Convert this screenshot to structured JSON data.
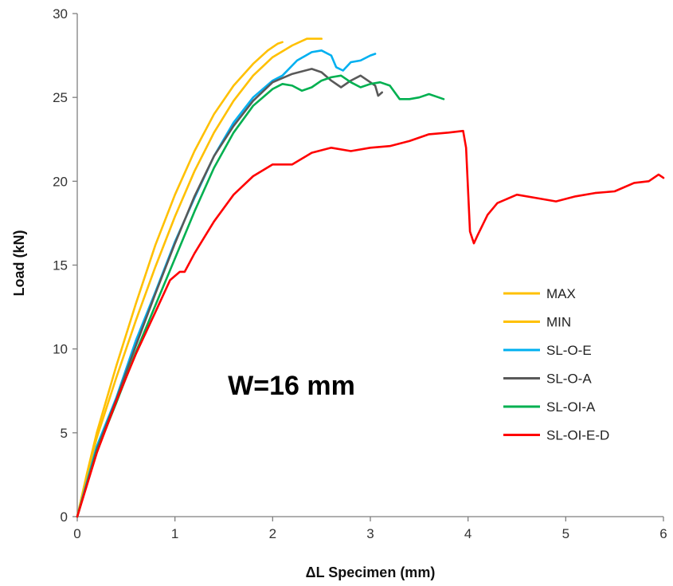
{
  "chart_data": {
    "type": "line",
    "title": "",
    "xlabel": "ΔL Specimen (mm)",
    "ylabel": "Load (kN)",
    "xlim": [
      0,
      6
    ],
    "ylim": [
      0,
      30
    ],
    "xticks": [
      "0",
      "1",
      "2",
      "3",
      "4",
      "5",
      "6"
    ],
    "yticks": [
      "0",
      "5",
      "10",
      "15",
      "20",
      "25",
      "30"
    ],
    "grid": false,
    "legend_position": "right",
    "annotation": "W=16 mm",
    "series": [
      {
        "name": "MAX",
        "color": "#FFC000",
        "x": [
          0,
          0.1,
          0.2,
          0.4,
          0.6,
          0.8,
          1.0,
          1.2,
          1.4,
          1.6,
          1.8,
          1.95,
          2.05,
          2.1
        ],
        "y": [
          0,
          2.6,
          5.0,
          9.0,
          12.7,
          16.2,
          19.2,
          21.8,
          24.0,
          25.7,
          27.0,
          27.8,
          28.2,
          28.3
        ]
      },
      {
        "name": "MIN",
        "color": "#FFC000",
        "x": [
          0,
          0.1,
          0.2,
          0.4,
          0.6,
          0.8,
          1.0,
          1.2,
          1.4,
          1.6,
          1.8,
          2.0,
          2.2,
          2.35,
          2.45,
          2.5
        ],
        "y": [
          0,
          2.5,
          4.7,
          8.3,
          11.7,
          14.9,
          17.9,
          20.6,
          22.9,
          24.8,
          26.3,
          27.4,
          28.1,
          28.5,
          28.5,
          28.5
        ]
      },
      {
        "name": "SL-O-E",
        "color": "#00B0F0",
        "x": [
          0,
          0.2,
          0.4,
          0.6,
          0.8,
          1.0,
          1.2,
          1.4,
          1.6,
          1.8,
          2.0,
          2.1,
          2.25,
          2.4,
          2.5,
          2.6,
          2.65,
          2.72,
          2.8,
          2.9,
          3.0,
          3.05
        ],
        "y": [
          0,
          4.2,
          7.1,
          10.5,
          13.4,
          16.4,
          19.0,
          21.5,
          23.5,
          25.0,
          26.0,
          26.3,
          27.2,
          27.7,
          27.8,
          27.5,
          26.8,
          26.6,
          27.1,
          27.2,
          27.5,
          27.6
        ]
      },
      {
        "name": "SL-O-A",
        "color": "#595959",
        "x": [
          0,
          0.2,
          0.4,
          0.6,
          0.8,
          1.0,
          1.2,
          1.4,
          1.6,
          1.8,
          2.0,
          2.2,
          2.4,
          2.5,
          2.6,
          2.7,
          2.8,
          2.9,
          3.0,
          3.05,
          3.08,
          3.12
        ],
        "y": [
          0,
          4.0,
          7.0,
          10.2,
          13.3,
          16.3,
          19.1,
          21.5,
          23.3,
          24.8,
          25.9,
          26.4,
          26.7,
          26.5,
          26.0,
          25.6,
          26.0,
          26.3,
          25.9,
          25.7,
          25.1,
          25.3
        ]
      },
      {
        "name": "SL-OI-A",
        "color": "#00B050",
        "x": [
          0,
          0.2,
          0.4,
          0.6,
          0.8,
          1.0,
          1.2,
          1.4,
          1.6,
          1.8,
          2.0,
          2.1,
          2.2,
          2.3,
          2.4,
          2.5,
          2.6,
          2.7,
          2.8,
          2.9,
          3.0,
          3.1,
          3.2,
          3.3,
          3.4,
          3.5,
          3.6,
          3.7,
          3.75
        ],
        "y": [
          0,
          3.9,
          6.8,
          9.8,
          12.6,
          15.4,
          18.2,
          20.8,
          22.9,
          24.5,
          25.5,
          25.8,
          25.7,
          25.4,
          25.6,
          26.0,
          26.2,
          26.3,
          25.9,
          25.6,
          25.8,
          25.9,
          25.7,
          24.9,
          24.9,
          25.0,
          25.2,
          25.0,
          24.9
        ]
      },
      {
        "name": "SL-OI-E-D",
        "color": "#FF0000",
        "x": [
          0,
          0.2,
          0.4,
          0.6,
          0.8,
          0.95,
          1.05,
          1.1,
          1.2,
          1.4,
          1.6,
          1.8,
          2.0,
          2.2,
          2.4,
          2.6,
          2.8,
          3.0,
          3.2,
          3.4,
          3.6,
          3.8,
          3.95,
          3.98,
          4.02,
          4.06,
          4.1,
          4.2,
          4.3,
          4.5,
          4.7,
          4.9,
          5.1,
          5.3,
          5.5,
          5.7,
          5.85,
          5.95,
          6.0
        ],
        "y": [
          0,
          3.8,
          6.9,
          9.7,
          12.2,
          14.1,
          14.6,
          14.6,
          15.7,
          17.6,
          19.2,
          20.3,
          21.0,
          21.0,
          21.7,
          22.0,
          21.8,
          22.0,
          22.1,
          22.4,
          22.8,
          22.9,
          23.0,
          22.0,
          17.0,
          16.3,
          16.8,
          18.0,
          18.7,
          19.2,
          19.0,
          18.8,
          19.1,
          19.3,
          19.4,
          19.9,
          20.0,
          20.4,
          20.2
        ]
      }
    ]
  }
}
